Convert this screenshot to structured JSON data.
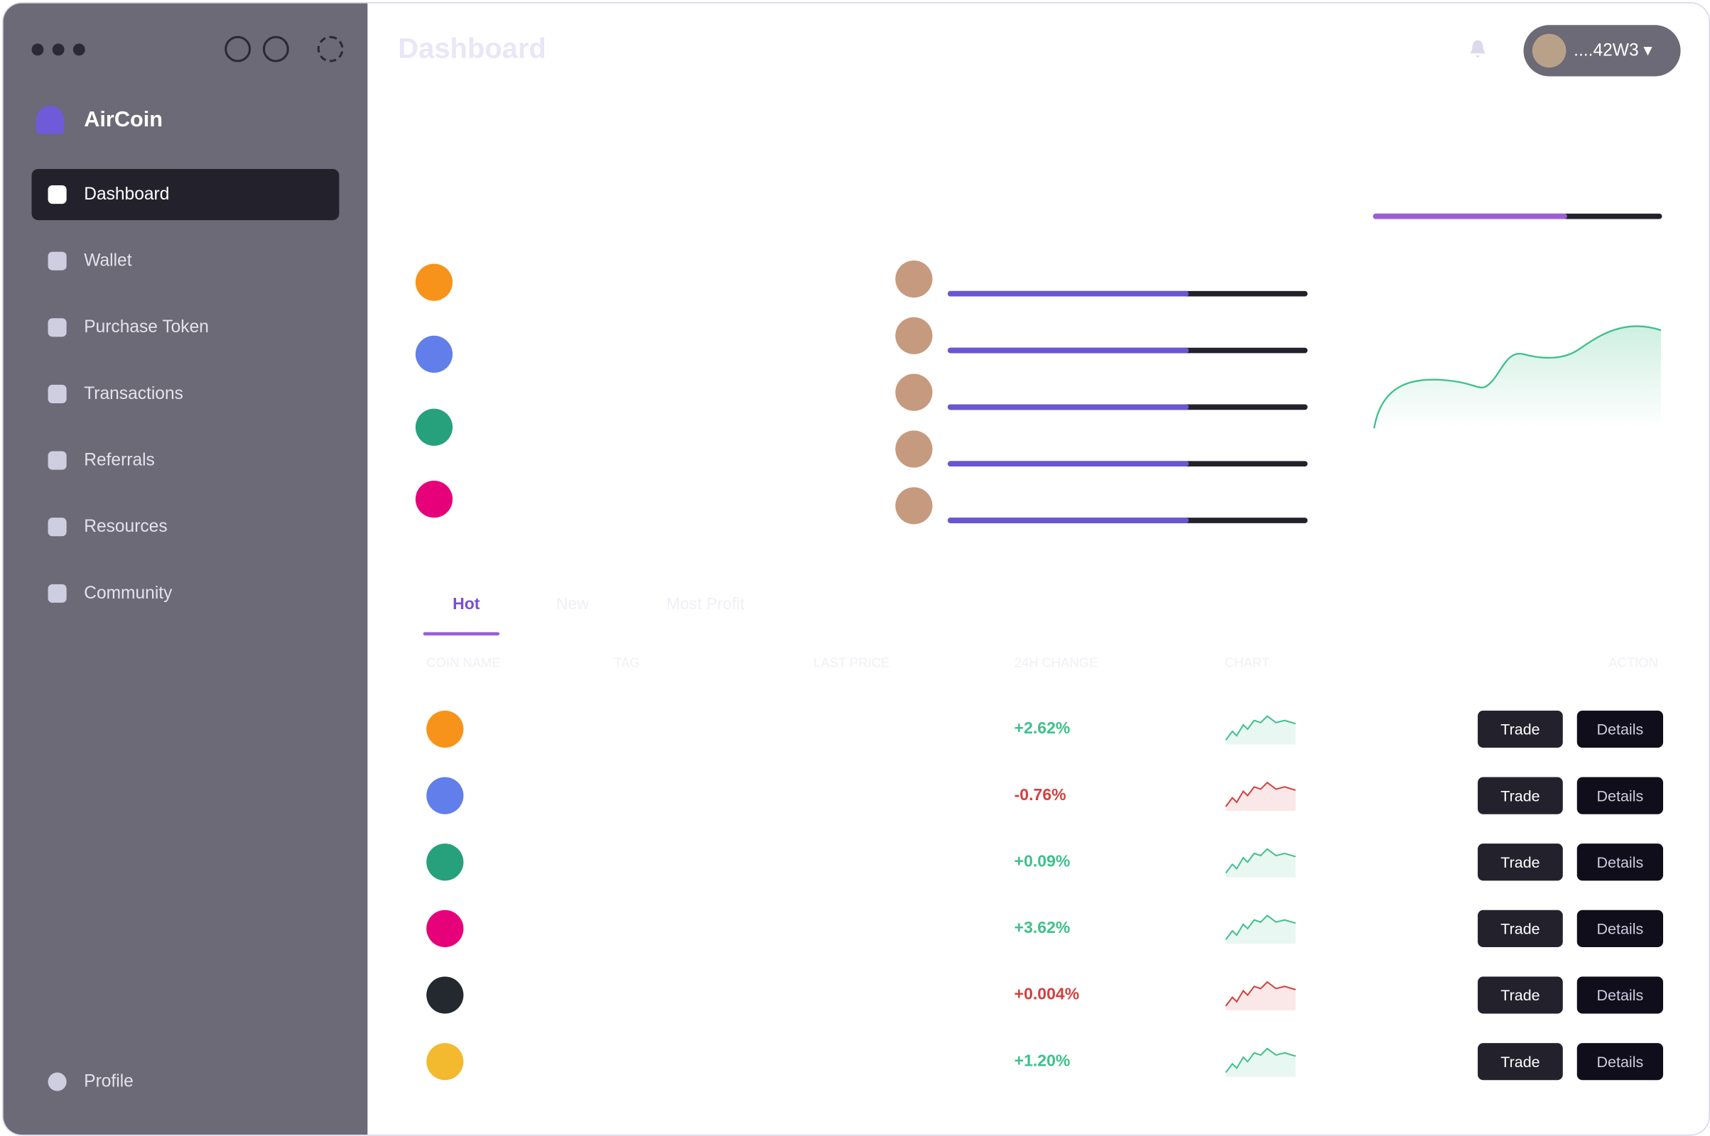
{
  "app": {
    "name": "AirCoin"
  },
  "nav": {
    "items": [
      "Dashboard",
      "Wallet",
      "Purchase Token",
      "Transactions",
      "Referrals",
      "Resources",
      "Community"
    ],
    "active": 0,
    "footer": "Profile"
  },
  "header": {
    "title": "Dashboard",
    "account": "....42W3"
  },
  "tabs": {
    "items": [
      "Hot",
      "New",
      "Most Profit"
    ],
    "active": 0
  },
  "table": {
    "columns": [
      "COIN NAME",
      "TAG",
      "LAST PRICE",
      "24H CHANGE",
      "CHART",
      "ACTION"
    ],
    "rows": [
      {
        "change": "+2.62%",
        "color": "#3ec08b",
        "actions": [
          "Trade",
          "Details"
        ]
      },
      {
        "change": "-0.76%",
        "color": "#d2403f",
        "actions": [
          "Trade",
          "Details"
        ]
      },
      {
        "change": "+0.09%",
        "color": "#3ec08b",
        "actions": [
          "Trade",
          "Details"
        ]
      },
      {
        "change": "+3.62%",
        "color": "#3ec08b",
        "actions": [
          "Trade",
          "Details"
        ]
      },
      {
        "change": "+0.004%",
        "color": "#d2403f",
        "actions": [
          "Trade",
          "Details"
        ]
      },
      {
        "change": "+1.20%",
        "color": "#3ec08b",
        "actions": [
          "Trade",
          "Details"
        ]
      }
    ]
  }
}
